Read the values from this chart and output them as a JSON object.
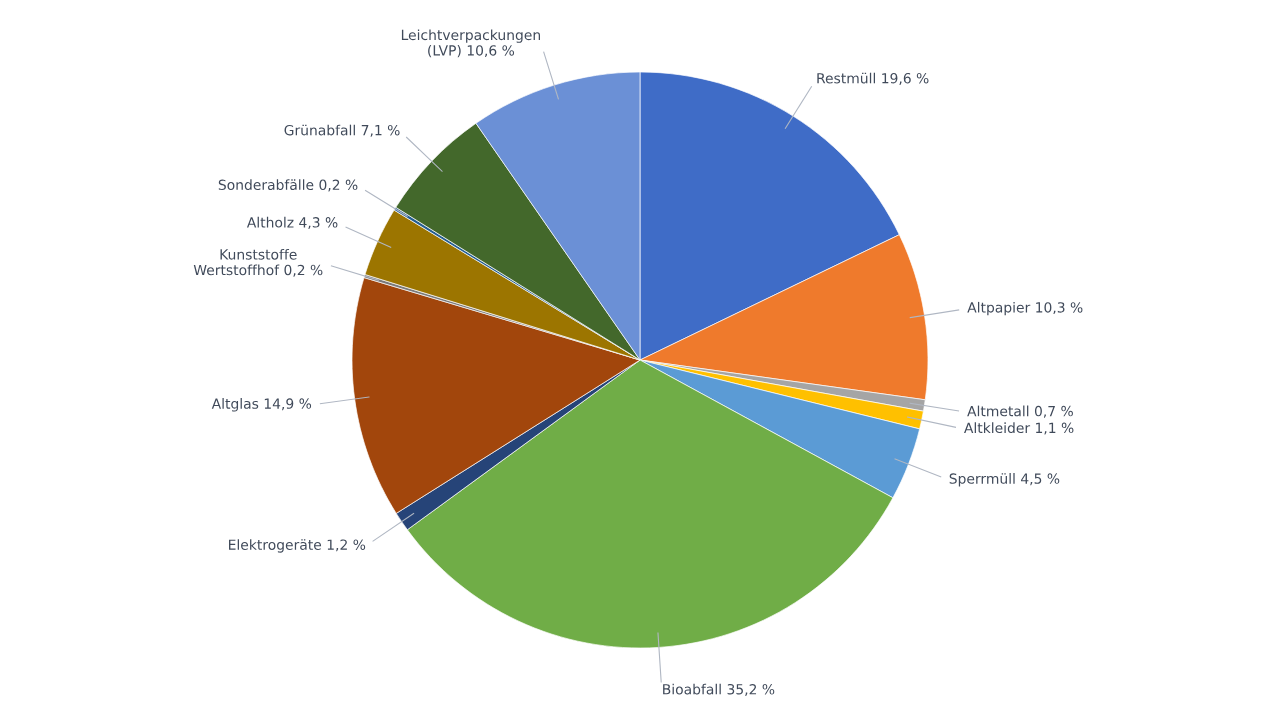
{
  "chart_data": {
    "type": "pie",
    "categories": [
      "Restmüll",
      "Altpapier",
      "Altmetall",
      "Altkleider",
      "Sperrmüll",
      "Bioabfall",
      "Elektrogeräte",
      "Altglas",
      "Kunststoffe Wertstoffhof",
      "Altholz",
      "Sonderabfälle",
      "Grünabfall",
      "Leichtverpackungen (LVP)"
    ],
    "values": [
      19.6,
      10.3,
      0.7,
      1.1,
      4.5,
      35.2,
      1.2,
      14.9,
      0.2,
      4.3,
      0.2,
      7.1,
      10.6
    ],
    "value_labels": [
      "19,6 %",
      "10,3 %",
      "0,7 %",
      "1,1 %",
      "4,5 %",
      "35,2 %",
      "1,2 %",
      "14,9 %",
      "0,2 %",
      "4,3 %",
      "0,2 %",
      "7,1 %",
      "10,6 %"
    ],
    "colors": [
      "#3f6cc7",
      "#ef7a2c",
      "#a5a5a5",
      "#ffc000",
      "#5b9bd5",
      "#70ad47",
      "#264478",
      "#a2460c",
      "#7a7a7a",
      "#9c7500",
      "#255e91",
      "#43682b",
      "#6b90d6"
    ],
    "legend": false
  }
}
